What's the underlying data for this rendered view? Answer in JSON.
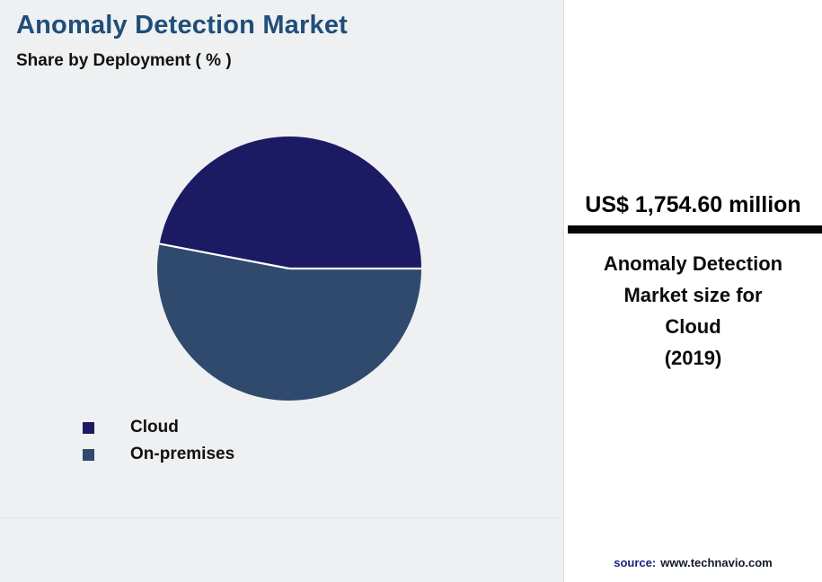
{
  "header": {
    "title": "Anomaly Detection Market",
    "subtitle": "Share by Deployment ( % )"
  },
  "chart_data": {
    "type": "pie",
    "title": "Anomaly Detection Market",
    "subtitle": "Share by Deployment ( % )",
    "labels": [
      "Cloud",
      "On-premises"
    ],
    "values": [
      47,
      53
    ],
    "colors": [
      "#1c1a63",
      "#2f4a6d"
    ],
    "start_angle_deg": -169.2,
    "divider_color": "#ffffff",
    "legend_position": "bottom-left",
    "data_labels_shown": false
  },
  "panel": {
    "value": "US$ 1,754.60 million",
    "description": "Anomaly Detection\nMarket size for\nCloud\n(2019)",
    "source_label": "source:",
    "source_url": "www.technavio.com"
  },
  "colors": {
    "title": "#1f4e79",
    "accent_bar": "#050505",
    "background": "#eef0f2",
    "panel_background": "#ffffff",
    "source_label": "#1a237e"
  }
}
